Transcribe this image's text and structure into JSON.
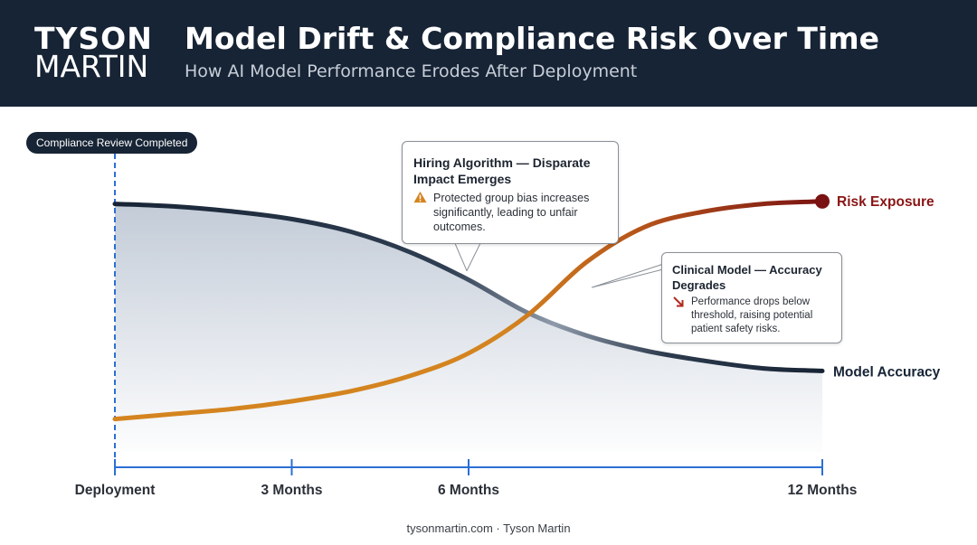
{
  "header": {
    "brand_line1": "TYSON",
    "brand_line2": "MARTIN",
    "title": "Model Drift & Compliance Risk Over Time",
    "subtitle": "How AI Model Performance Erodes After Deployment"
  },
  "pill_label": "Compliance Review Completed",
  "callouts": [
    {
      "title": "Hiring Algorithm — Disparate Impact Emerges",
      "icon": "warning-icon",
      "body": "Protected group bias increases significantly, leading to unfair outcomes."
    },
    {
      "title": "Clinical Model — Accuracy Degrades",
      "icon": "trend-down-arrow-icon",
      "body": "Performance drops below threshold, raising potential patient safety risks."
    }
  ],
  "footer": "tysonmartin.com · Tyson Martin",
  "colors": {
    "header_bg": "#172435",
    "accuracy": "#172435",
    "risk_start": "#d4841f",
    "risk_end": "#7a1212",
    "axis": "#2b6fd6"
  },
  "chart_data": {
    "type": "line",
    "x_ticks": [
      "Deployment",
      "3 Months",
      "6 Months",
      "12 Months"
    ],
    "x_tick_values": [
      0,
      3,
      6,
      12
    ],
    "xlim": [
      0,
      12
    ],
    "ylim": [
      0,
      1
    ],
    "y_axis_shown": false,
    "grid": false,
    "series": [
      {
        "name": "Model Accuracy",
        "x": [
          0,
          1,
          2,
          3,
          4,
          5,
          6,
          7,
          8,
          9,
          10,
          11,
          12
        ],
        "y": [
          0.98,
          0.97,
          0.95,
          0.92,
          0.87,
          0.79,
          0.68,
          0.55,
          0.46,
          0.4,
          0.36,
          0.33,
          0.32
        ],
        "filled_area": true
      },
      {
        "name": "Risk Exposure",
        "x": [
          0,
          1,
          2,
          3,
          4,
          5,
          6,
          7,
          8,
          9,
          10,
          11,
          12
        ],
        "y": [
          0.13,
          0.15,
          0.17,
          0.2,
          0.24,
          0.3,
          0.39,
          0.54,
          0.75,
          0.89,
          0.95,
          0.98,
          0.99
        ]
      }
    ],
    "markers": [
      {
        "x": 0,
        "label": "Compliance Review Completed",
        "style": "dashed-vertical"
      }
    ],
    "annotations": [
      {
        "x": 6,
        "series": "Model Accuracy",
        "text": "Hiring Algorithm — Disparate Impact Emerges"
      },
      {
        "x": 10,
        "series": "Risk Exposure",
        "text": "Clinical Model — Accuracy Degrades"
      }
    ]
  }
}
